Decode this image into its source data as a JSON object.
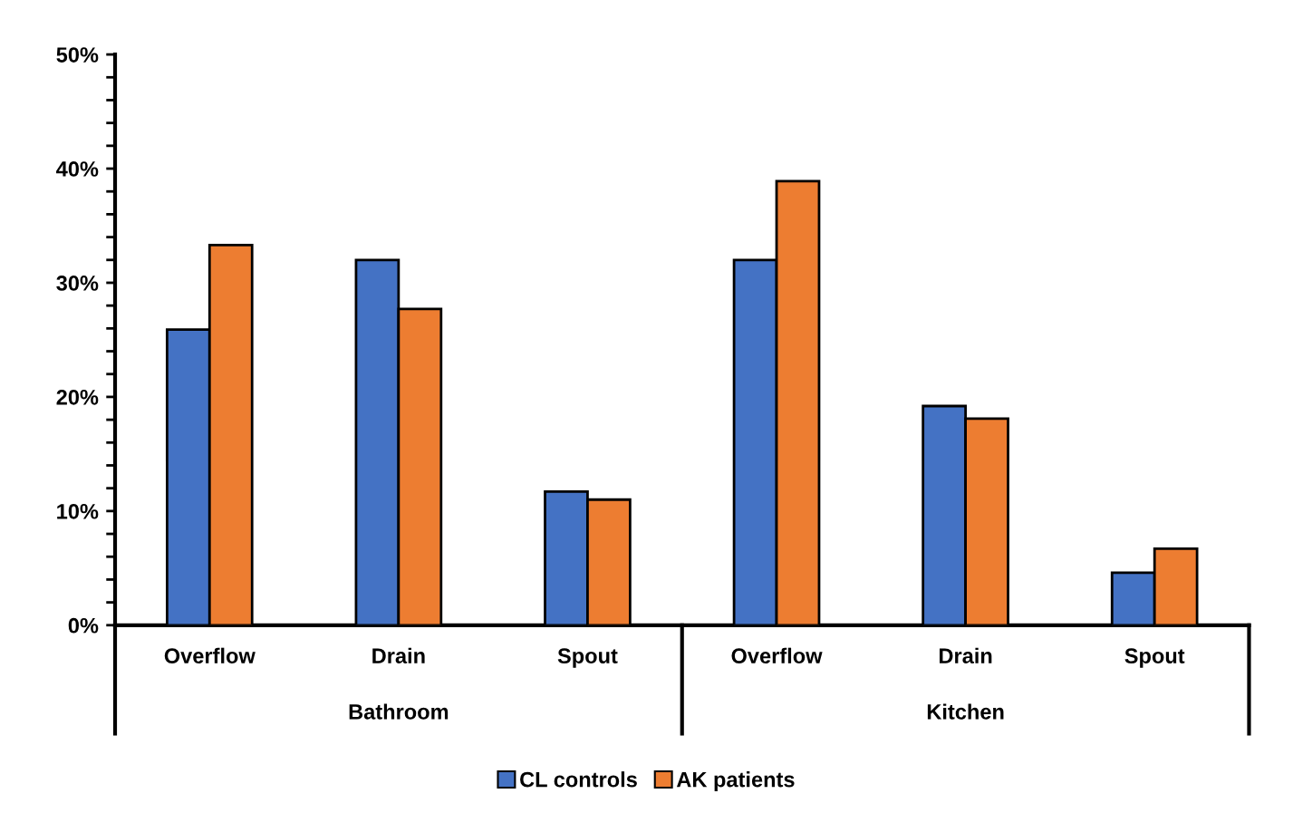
{
  "chart_data": {
    "type": "bar",
    "categories": [
      "Overflow",
      "Drain",
      "Spout",
      "Overflow",
      "Drain",
      "Spout"
    ],
    "series": [
      {
        "name": "CL controls",
        "color": "#4472c4",
        "values": [
          25.9,
          32.0,
          11.7,
          32.0,
          19.2,
          4.6
        ]
      },
      {
        "name": "AK patients",
        "color": "#ed7d31",
        "values": [
          33.3,
          27.7,
          11.0,
          38.9,
          18.1,
          6.7
        ]
      }
    ],
    "annotations": [
      "Bathroom",
      "Kitchen"
    ],
    "ylim": [
      0,
      50
    ],
    "yticks": [
      {
        "value": 0,
        "label": "0%"
      },
      {
        "value": 2,
        "label": null
      },
      {
        "value": 4,
        "label": null
      },
      {
        "value": 6,
        "label": null
      },
      {
        "value": 8,
        "label": null
      },
      {
        "value": 10,
        "label": "10%"
      },
      {
        "value": 12,
        "label": null
      },
      {
        "value": 14,
        "label": null
      },
      {
        "value": 16,
        "label": null
      },
      {
        "value": 18,
        "label": null
      },
      {
        "value": 20,
        "label": "20%"
      },
      {
        "value": 22,
        "label": null
      },
      {
        "value": 24,
        "label": null
      },
      {
        "value": 26,
        "label": null
      },
      {
        "value": 28,
        "label": null
      },
      {
        "value": 30,
        "label": "30%"
      },
      {
        "value": 32,
        "label": null
      },
      {
        "value": 34,
        "label": null
      },
      {
        "value": 36,
        "label": null
      },
      {
        "value": 38,
        "label": null
      },
      {
        "value": 40,
        "label": "40%"
      },
      {
        "value": 42,
        "label": null
      },
      {
        "value": 44,
        "label": null
      },
      {
        "value": 46,
        "label": null
      },
      {
        "value": 48,
        "label": null
      },
      {
        "value": 50,
        "label": "50%"
      }
    ],
    "grid": false,
    "legend": "bottom"
  }
}
